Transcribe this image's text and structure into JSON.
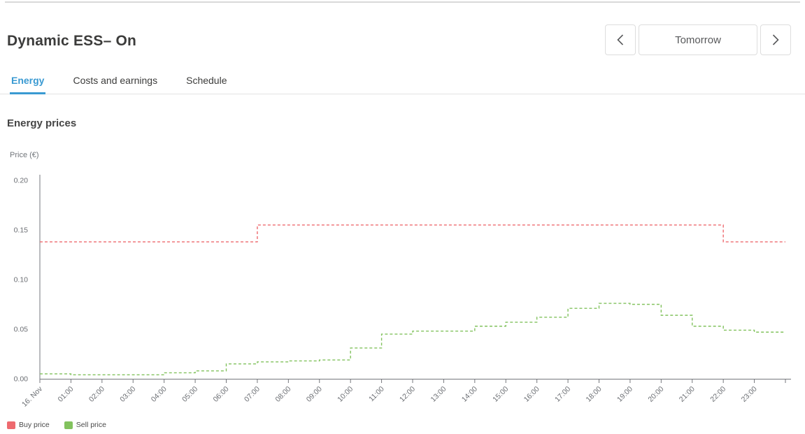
{
  "header": {
    "title": "Dynamic ESS– On",
    "nav": {
      "prev_label": "chevron-left",
      "date_label": "Tomorrow",
      "next_label": "chevron-right"
    }
  },
  "tabs": [
    {
      "label": "Energy",
      "active": true
    },
    {
      "label": "Costs and earnings",
      "active": false
    },
    {
      "label": "Schedule",
      "active": false
    }
  ],
  "section_title": "Energy prices",
  "chart_data": {
    "type": "line",
    "subtype": "step-after-dashed",
    "title": "Energy prices",
    "ylabel": "Price (€)",
    "xlabel": "",
    "ylim": [
      0,
      0.2
    ],
    "yticks": [
      "0.00",
      "0.05",
      "0.10",
      "0.15",
      "0.20"
    ],
    "x_labels": [
      "16. Nov",
      "01:00",
      "02:00",
      "03:00",
      "04:00",
      "05:00",
      "06:00",
      "07:00",
      "08:00",
      "09:00",
      "10:00",
      "11:00",
      "12:00",
      "13:00",
      "14:00",
      "15:00",
      "16:00",
      "17:00",
      "18:00",
      "19:00",
      "20:00",
      "21:00",
      "22:00",
      "23:00"
    ],
    "x_hours": 24,
    "grid": false,
    "legend_position": "bottom-left",
    "axis_color": "#75777c",
    "label_color": "#6b6e73",
    "series": [
      {
        "name": "Buy price",
        "color": "#ee6a6f",
        "values": [
          0.138,
          0.138,
          0.138,
          0.138,
          0.138,
          0.138,
          0.138,
          0.155,
          0.155,
          0.155,
          0.155,
          0.155,
          0.155,
          0.155,
          0.155,
          0.155,
          0.155,
          0.155,
          0.155,
          0.155,
          0.155,
          0.155,
          0.138,
          0.138
        ]
      },
      {
        "name": "Sell price",
        "color": "#82c25e",
        "values": [
          0.005,
          0.004,
          0.004,
          0.004,
          0.006,
          0.008,
          0.015,
          0.017,
          0.018,
          0.019,
          0.031,
          0.045,
          0.048,
          0.048,
          0.053,
          0.057,
          0.062,
          0.071,
          0.076,
          0.075,
          0.064,
          0.053,
          0.049,
          0.047
        ]
      }
    ]
  }
}
